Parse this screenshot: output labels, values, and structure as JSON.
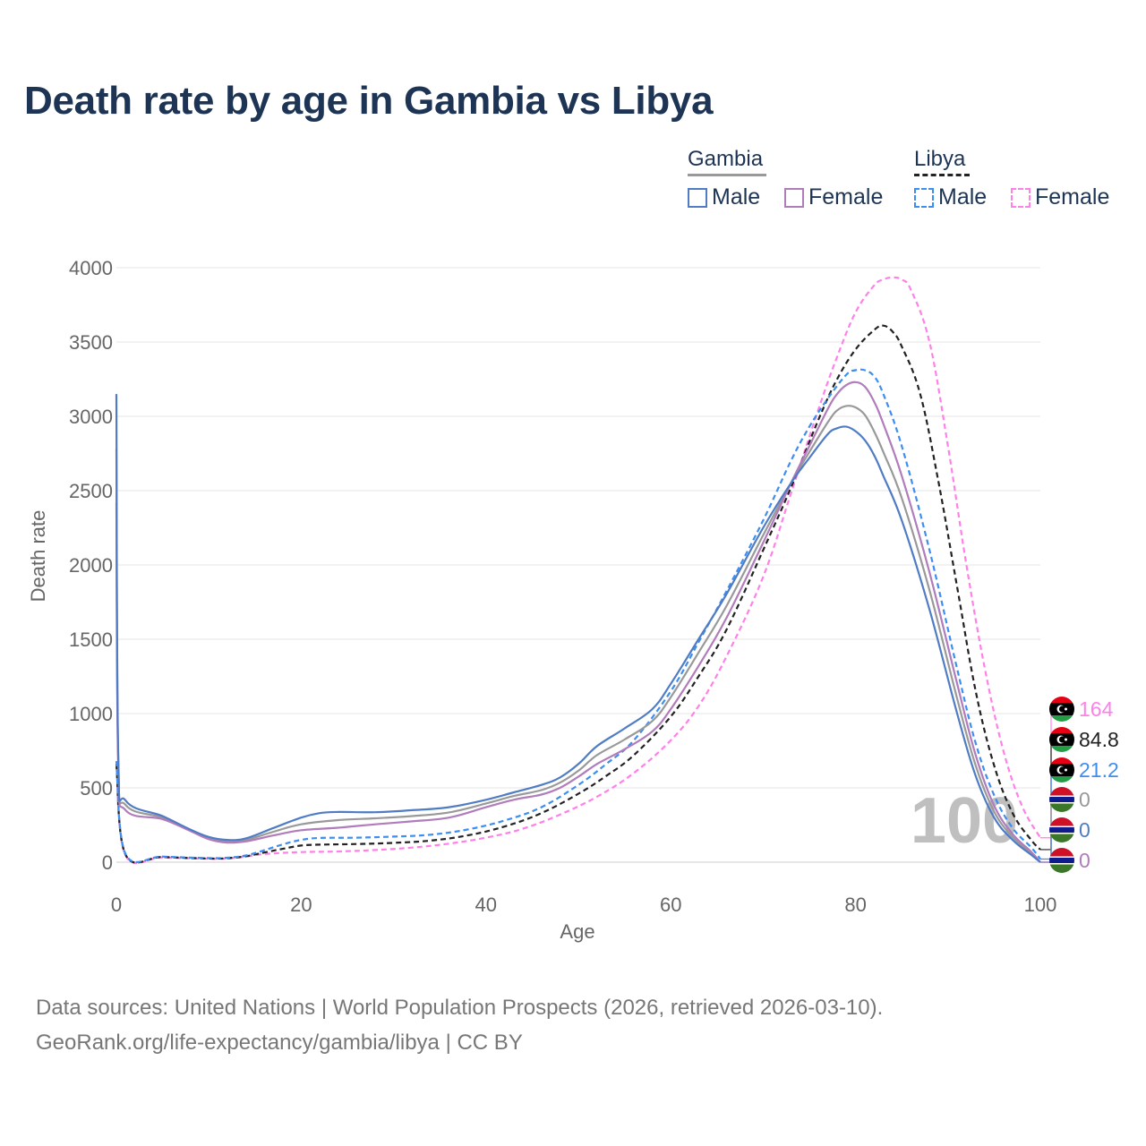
{
  "title": "Death rate by age in Gambia vs Libya",
  "legend": {
    "groups": [
      {
        "name": "Gambia",
        "male_label": "Male",
        "female_label": "Female"
      },
      {
        "name": "Libya",
        "male_label": "Male",
        "female_label": "Female"
      }
    ]
  },
  "footer": {
    "line1": "Data sources: United Nations | World Population Prospects (2026, retrieved 2026-03-10).",
    "line2": "GeoRank.org/life-expectancy/gambia/libya | CC BY"
  },
  "colors": {
    "gambia_male": "#4f7cc4",
    "gambia_female": "#b07cbb",
    "gambia_total": "#999999",
    "libya_male": "#3d8ef0",
    "libya_female": "#ff80e8",
    "libya_total": "#222222",
    "title": "#1d3455",
    "grid": "#e6e6e6"
  },
  "chart_data": {
    "type": "line",
    "xlabel": "Age",
    "ylabel": "Death rate",
    "xlim": [
      0,
      100
    ],
    "ylim": [
      0,
      4000
    ],
    "xticks": [
      0,
      20,
      40,
      60,
      80,
      100
    ],
    "yticks": [
      0,
      500,
      1000,
      1500,
      2000,
      2500,
      3000,
      3500,
      4000
    ],
    "watermark": "100",
    "series": [
      {
        "name": "Gambia Male",
        "key": "gambia_male",
        "dash": false,
        "end_label": "0",
        "points": [
          [
            0,
            3150
          ],
          [
            0.2,
            720
          ],
          [
            1,
            415
          ],
          [
            5,
            310
          ],
          [
            8,
            220
          ],
          [
            10,
            170
          ],
          [
            12,
            150
          ],
          [
            14,
            160
          ],
          [
            17,
            230
          ],
          [
            20,
            300
          ],
          [
            22,
            330
          ],
          [
            24,
            338
          ],
          [
            28,
            336
          ],
          [
            32,
            350
          ],
          [
            36,
            370
          ],
          [
            40,
            420
          ],
          [
            43,
            470
          ],
          [
            46,
            520
          ],
          [
            48,
            570
          ],
          [
            50,
            660
          ],
          [
            52,
            780
          ],
          [
            55,
            900
          ],
          [
            58,
            1030
          ],
          [
            60,
            1200
          ],
          [
            63,
            1500
          ],
          [
            66,
            1800
          ],
          [
            70,
            2250
          ],
          [
            73,
            2550
          ],
          [
            75,
            2720
          ],
          [
            77,
            2880
          ],
          [
            78,
            2920
          ],
          [
            79,
            2930
          ],
          [
            80,
            2900
          ],
          [
            81,
            2840
          ],
          [
            82,
            2740
          ],
          [
            83,
            2600
          ],
          [
            85,
            2300
          ],
          [
            88,
            1700
          ],
          [
            91,
            1000
          ],
          [
            93,
            580
          ],
          [
            95,
            300
          ],
          [
            97,
            150
          ],
          [
            99,
            50
          ],
          [
            100,
            0
          ]
        ]
      },
      {
        "name": "Gambia Female",
        "key": "gambia_female",
        "dash": false,
        "end_label": "0",
        "points": [
          [
            0,
            2420
          ],
          [
            0.2,
            650
          ],
          [
            1,
            350
          ],
          [
            5,
            290
          ],
          [
            8,
            210
          ],
          [
            10,
            155
          ],
          [
            12,
            132
          ],
          [
            14,
            140
          ],
          [
            17,
            180
          ],
          [
            20,
            215
          ],
          [
            24,
            232
          ],
          [
            28,
            255
          ],
          [
            32,
            275
          ],
          [
            36,
            300
          ],
          [
            40,
            370
          ],
          [
            43,
            420
          ],
          [
            46,
            455
          ],
          [
            48,
            500
          ],
          [
            50,
            575
          ],
          [
            52,
            660
          ],
          [
            55,
            760
          ],
          [
            58,
            880
          ],
          [
            60,
            1030
          ],
          [
            63,
            1320
          ],
          [
            66,
            1640
          ],
          [
            70,
            2150
          ],
          [
            73,
            2550
          ],
          [
            75,
            2800
          ],
          [
            77,
            3050
          ],
          [
            78,
            3150
          ],
          [
            79,
            3210
          ],
          [
            80,
            3230
          ],
          [
            81,
            3200
          ],
          [
            82,
            3100
          ],
          [
            83,
            2950
          ],
          [
            85,
            2600
          ],
          [
            88,
            1950
          ],
          [
            91,
            1200
          ],
          [
            93,
            720
          ],
          [
            95,
            380
          ],
          [
            97,
            190
          ],
          [
            99,
            70
          ],
          [
            100,
            0
          ]
        ]
      },
      {
        "name": "Gambia Total",
        "key": "gambia_total",
        "dash": false,
        "end_label": "0",
        "points": [
          [
            0,
            2780
          ],
          [
            0.2,
            680
          ],
          [
            1,
            385
          ],
          [
            5,
            300
          ],
          [
            8,
            215
          ],
          [
            10,
            162
          ],
          [
            12,
            141
          ],
          [
            14,
            150
          ],
          [
            17,
            205
          ],
          [
            20,
            255
          ],
          [
            24,
            283
          ],
          [
            28,
            295
          ],
          [
            32,
            310
          ],
          [
            36,
            335
          ],
          [
            40,
            395
          ],
          [
            43,
            445
          ],
          [
            46,
            485
          ],
          [
            48,
            535
          ],
          [
            50,
            615
          ],
          [
            52,
            720
          ],
          [
            55,
            825
          ],
          [
            58,
            950
          ],
          [
            60,
            1110
          ],
          [
            63,
            1410
          ],
          [
            66,
            1720
          ],
          [
            70,
            2200
          ],
          [
            73,
            2550
          ],
          [
            75,
            2760
          ],
          [
            77,
            2960
          ],
          [
            78,
            3040
          ],
          [
            79,
            3070
          ],
          [
            80,
            3060
          ],
          [
            81,
            3010
          ],
          [
            82,
            2900
          ],
          [
            83,
            2760
          ],
          [
            85,
            2450
          ],
          [
            88,
            1830
          ],
          [
            91,
            1100
          ],
          [
            93,
            650
          ],
          [
            95,
            340
          ],
          [
            97,
            170
          ],
          [
            99,
            60
          ],
          [
            100,
            0
          ]
        ]
      },
      {
        "name": "Libya Male",
        "key": "libya_male",
        "dash": true,
        "end_label": "21.2",
        "points": [
          [
            0,
            680
          ],
          [
            1,
            55
          ],
          [
            5,
            38
          ],
          [
            10,
            28
          ],
          [
            12,
            30
          ],
          [
            14,
            45
          ],
          [
            16,
            80
          ],
          [
            18,
            120
          ],
          [
            20,
            150
          ],
          [
            22,
            163
          ],
          [
            26,
            165
          ],
          [
            30,
            172
          ],
          [
            34,
            185
          ],
          [
            38,
            220
          ],
          [
            42,
            280
          ],
          [
            46,
            370
          ],
          [
            50,
            520
          ],
          [
            53,
            660
          ],
          [
            56,
            820
          ],
          [
            60,
            1150
          ],
          [
            63,
            1480
          ],
          [
            66,
            1820
          ],
          [
            70,
            2300
          ],
          [
            73,
            2700
          ],
          [
            75,
            2930
          ],
          [
            77,
            3120
          ],
          [
            79,
            3280
          ],
          [
            80,
            3310
          ],
          [
            81,
            3310
          ],
          [
            82,
            3270
          ],
          [
            83,
            3150
          ],
          [
            85,
            2800
          ],
          [
            88,
            2100
          ],
          [
            91,
            1300
          ],
          [
            93,
            800
          ],
          [
            95,
            450
          ],
          [
            97,
            230
          ],
          [
            99,
            100
          ],
          [
            100,
            21.2
          ]
        ]
      },
      {
        "name": "Libya Female",
        "key": "libya_female",
        "dash": true,
        "end_label": "164",
        "points": [
          [
            0,
            640
          ],
          [
            1,
            45
          ],
          [
            5,
            32
          ],
          [
            10,
            23
          ],
          [
            12,
            25
          ],
          [
            14,
            38
          ],
          [
            16,
            55
          ],
          [
            20,
            68
          ],
          [
            24,
            72
          ],
          [
            28,
            82
          ],
          [
            32,
            98
          ],
          [
            36,
            125
          ],
          [
            40,
            165
          ],
          [
            44,
            225
          ],
          [
            48,
            320
          ],
          [
            52,
            440
          ],
          [
            56,
            600
          ],
          [
            60,
            820
          ],
          [
            63,
            1050
          ],
          [
            66,
            1380
          ],
          [
            70,
            1920
          ],
          [
            73,
            2480
          ],
          [
            76,
            3050
          ],
          [
            78,
            3400
          ],
          [
            80,
            3700
          ],
          [
            82,
            3880
          ],
          [
            83,
            3920
          ],
          [
            84,
            3935
          ],
          [
            85,
            3920
          ],
          [
            86,
            3850
          ],
          [
            88,
            3500
          ],
          [
            90,
            2800
          ],
          [
            92,
            2000
          ],
          [
            94,
            1300
          ],
          [
            96,
            750
          ],
          [
            98,
            380
          ],
          [
            100,
            164
          ]
        ]
      },
      {
        "name": "Libya Total",
        "key": "libya_total",
        "dash": true,
        "end_label": "84.8",
        "points": [
          [
            0,
            660
          ],
          [
            1,
            50
          ],
          [
            5,
            35
          ],
          [
            10,
            25
          ],
          [
            12,
            27
          ],
          [
            14,
            40
          ],
          [
            16,
            65
          ],
          [
            18,
            90
          ],
          [
            20,
            112
          ],
          [
            22,
            118
          ],
          [
            26,
            122
          ],
          [
            30,
            130
          ],
          [
            34,
            145
          ],
          [
            38,
            180
          ],
          [
            42,
            240
          ],
          [
            46,
            330
          ],
          [
            50,
            460
          ],
          [
            53,
            580
          ],
          [
            56,
            720
          ],
          [
            60,
            980
          ],
          [
            63,
            1250
          ],
          [
            66,
            1560
          ],
          [
            70,
            2100
          ],
          [
            73,
            2520
          ],
          [
            76,
            2980
          ],
          [
            78,
            3250
          ],
          [
            80,
            3450
          ],
          [
            82,
            3580
          ],
          [
            83,
            3610
          ],
          [
            84,
            3570
          ],
          [
            85,
            3470
          ],
          [
            87,
            3150
          ],
          [
            89,
            2550
          ],
          [
            91,
            1850
          ],
          [
            93,
            1150
          ],
          [
            95,
            650
          ],
          [
            97,
            330
          ],
          [
            99,
            150
          ],
          [
            100,
            84.8
          ]
        ]
      }
    ]
  }
}
